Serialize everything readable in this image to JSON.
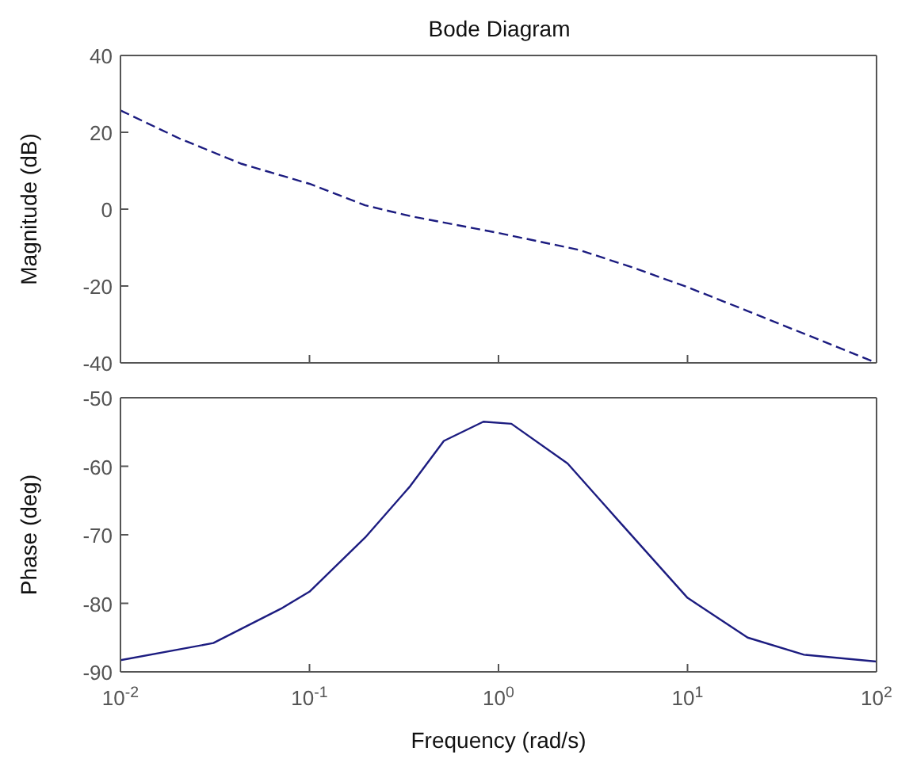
{
  "chart_data": [
    {
      "type": "line",
      "title": "Bode Diagram",
      "ylabel": "Magnitude (dB)",
      "log": "x",
      "grid": false,
      "marker": "none",
      "tick_labels": "y",
      "xlim": [
        0.01,
        100
      ],
      "xticks": [
        {
          "value": 0.01,
          "label": null
        },
        {
          "value": 0.1,
          "label": null
        },
        {
          "value": 1,
          "label": null
        },
        {
          "value": 10,
          "label": null
        },
        {
          "value": 100,
          "label": null
        }
      ],
      "ylim": [
        -40,
        40
      ],
      "yticks": [
        -40,
        -20,
        0,
        20,
        40
      ],
      "x": [
        0.01,
        0.0205,
        0.0437,
        0.1,
        0.197,
        0.341,
        1,
        2.67,
        5.28,
        10,
        20.8,
        41.3,
        100
      ],
      "series": [
        {
          "color": "#1c1c80",
          "line_style": "dashed",
          "values": [
            25.7,
            18.4,
            11.8,
            6.6,
            1,
            -1.8,
            -6.2,
            -10.6,
            -15.4,
            -20.3,
            -26.5,
            -32.4,
            -40
          ]
        }
      ]
    },
    {
      "type": "line",
      "ylabel": "Phase (deg)",
      "xlabel": "Frequency (rad/s)",
      "log": "x",
      "grid": false,
      "marker": "none",
      "xlim": [
        0.01,
        100
      ],
      "xticks": [
        {
          "value": 0.01,
          "label": "10$^{-2}$"
        },
        {
          "value": 0.1,
          "label": "10$^{-1}$"
        },
        {
          "value": 1,
          "label": "10$^{0}$"
        },
        {
          "value": 10,
          "label": "10$^{1}$"
        },
        {
          "value": 100,
          "label": "10$^{2}$"
        }
      ],
      "ylim": [
        -90,
        -50
      ],
      "yticks": [
        -90,
        -80,
        -70,
        -60,
        -50
      ],
      "x": [
        0.01,
        0.031,
        0.0705,
        0.1,
        0.197,
        0.341,
        0.514,
        0.832,
        1.17,
        2.32,
        4.3,
        10,
        20.8,
        41.3,
        100
      ],
      "series": [
        {
          "color": "#1c1c80",
          "line_style": "solid",
          "values": [
            -88.3,
            -85.8,
            -80.8,
            -78.3,
            -70.4,
            -62.9,
            -56.3,
            -53.5,
            -53.8,
            -59.6,
            -67.9,
            -79.2,
            -85,
            -87.5,
            -88.5
          ]
        }
      ]
    }
  ]
}
